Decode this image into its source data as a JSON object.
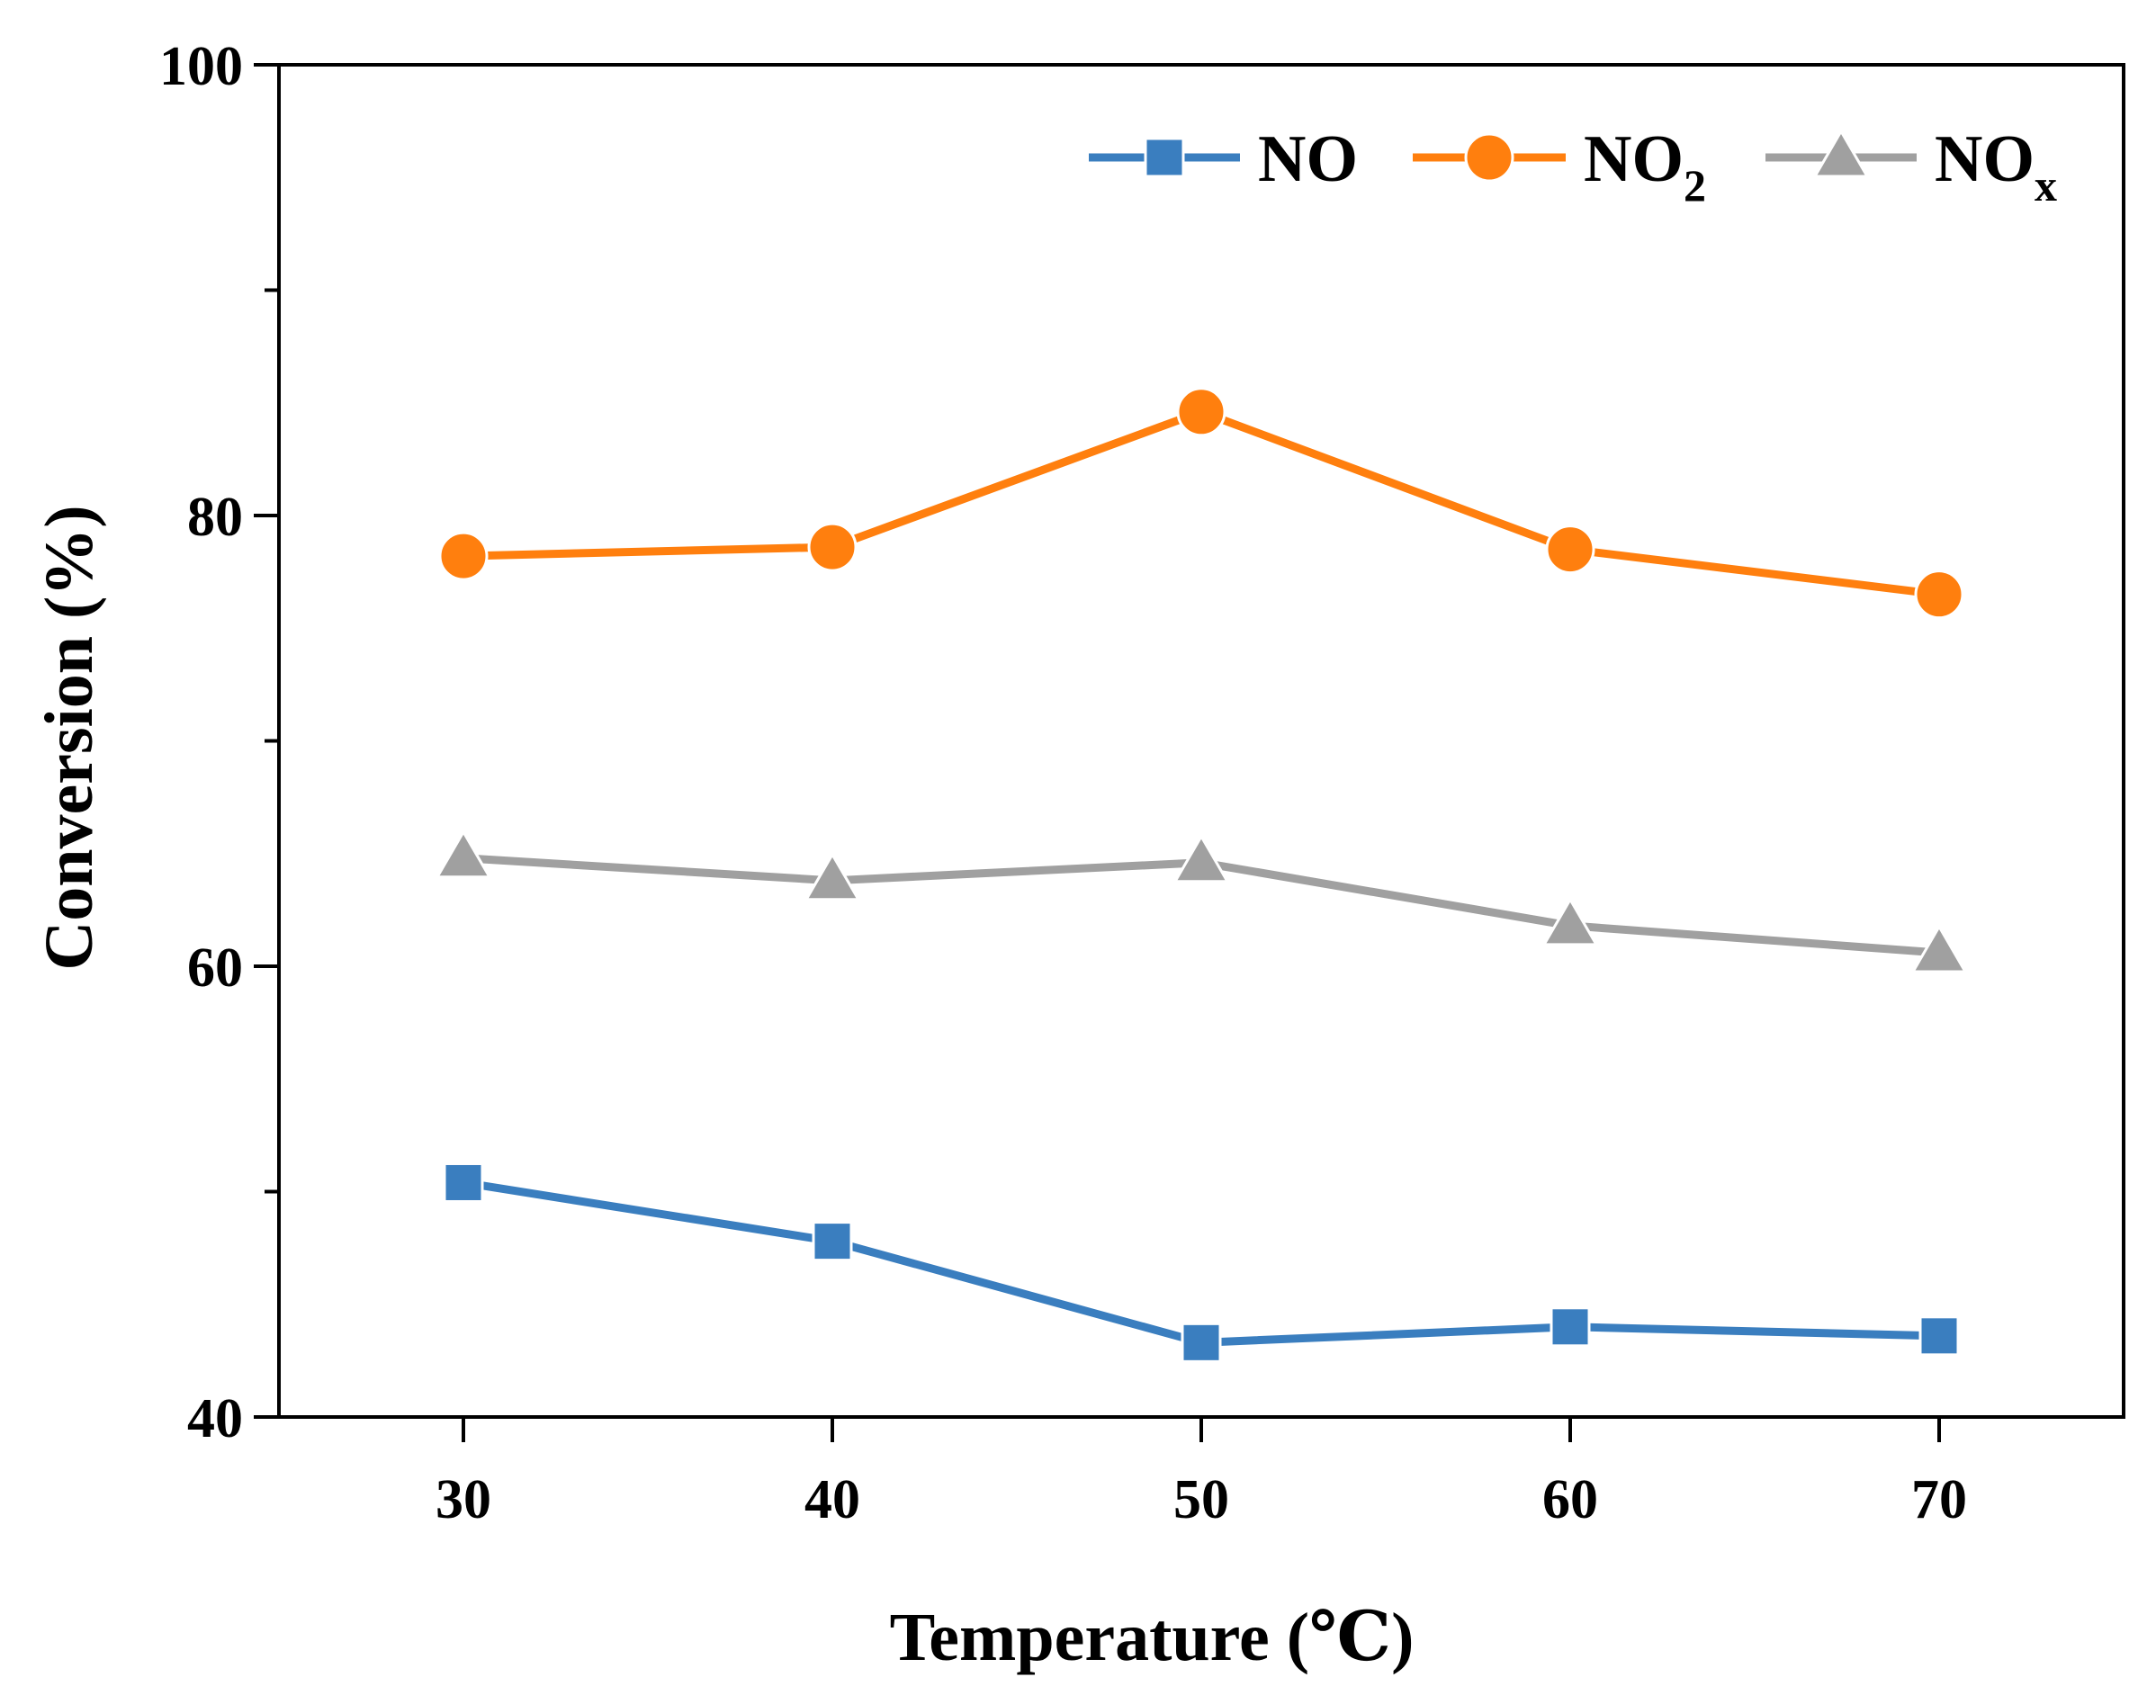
{
  "chart_data": {
    "type": "line",
    "title": "",
    "xlabel": "Temperature (℃)",
    "ylabel": "Conversion (%)",
    "x": [
      30,
      40,
      50,
      60,
      70
    ],
    "xticks": [
      "30",
      "40",
      "50",
      "60",
      "70"
    ],
    "yticks": [
      "40",
      "60",
      "80",
      "100"
    ],
    "xlim": [
      25,
      75
    ],
    "ylim": [
      40,
      100
    ],
    "grid": false,
    "legend_position": "top-right",
    "series": [
      {
        "name": "NO",
        "base": "NO",
        "sub": "",
        "marker": "square",
        "color": "#3a7ebf",
        "values": [
          50.4,
          47.8,
          43.3,
          44.0,
          43.6
        ]
      },
      {
        "name": "NO2",
        "base": "NO",
        "sub": "2",
        "marker": "circle",
        "color": "#ff7f0e",
        "values": [
          78.2,
          78.6,
          84.6,
          78.5,
          76.5
        ]
      },
      {
        "name": "NOx",
        "base": "NO",
        "sub": "x",
        "marker": "triangle",
        "color": "#a0a0a0",
        "values": [
          64.8,
          63.8,
          64.6,
          61.8,
          60.6
        ]
      }
    ]
  }
}
